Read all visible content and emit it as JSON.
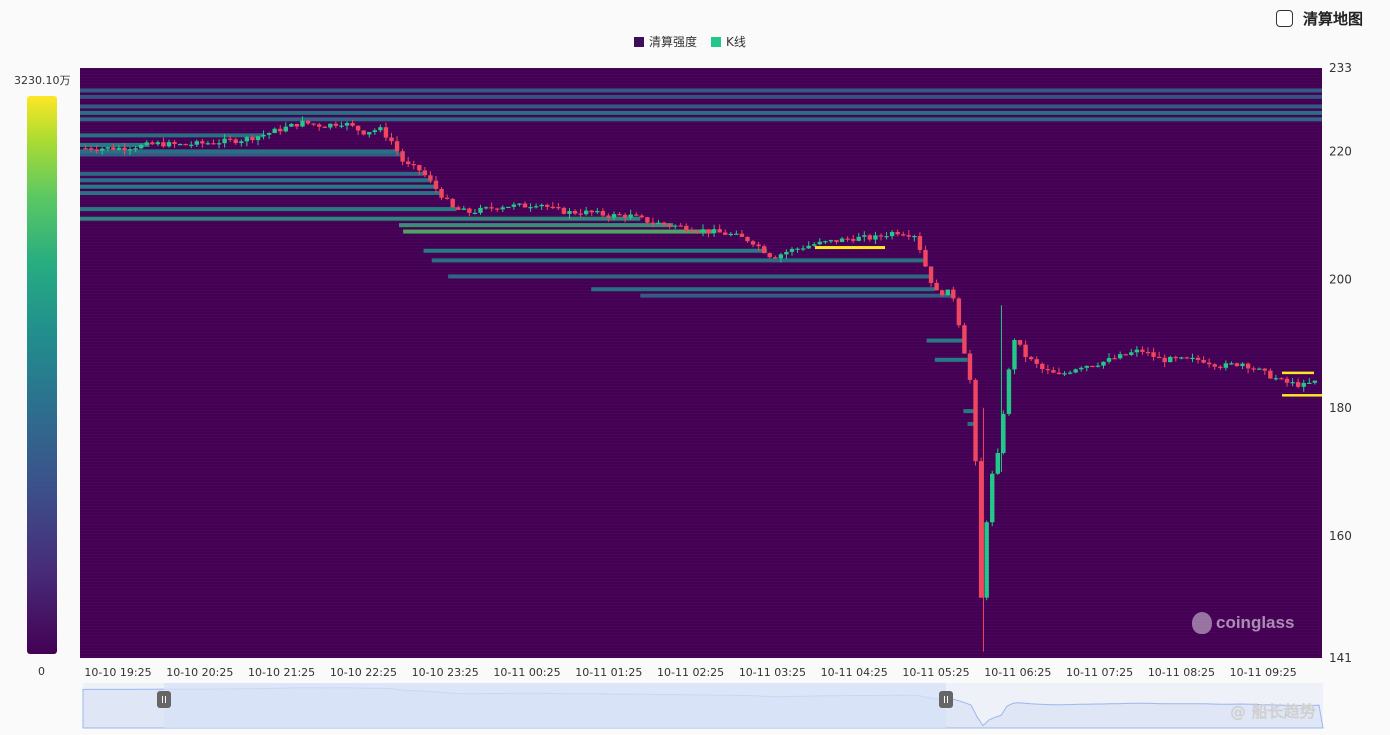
{
  "toggle": {
    "label": "清算地图"
  },
  "legend": [
    {
      "label": "清算强度",
      "color": "#3b0f5c"
    },
    {
      "label": "K线",
      "color": "#22c88a"
    }
  ],
  "colorbar": {
    "max_label": "3230.10万",
    "min_label": "0"
  },
  "watermark": {
    "brand": "coinglass",
    "corner_text": "@ 船长趋势"
  },
  "colors": {
    "background": "#440154",
    "up": "#22c88a",
    "down": "#f0465f",
    "highlight": "#fde725",
    "slider_fill": "#d7e1f8",
    "slider_line": "#9db6ee"
  },
  "chart_data": {
    "type": "heatmap",
    "title": "",
    "xlabel": "",
    "ylabel": "",
    "ylim": [
      141,
      233
    ],
    "y_ticks": [
      "233",
      "220",
      "200",
      "180",
      "160",
      "141"
    ],
    "x_ticks": [
      "10-10 19:25",
      "10-10 20:25",
      "10-10 21:25",
      "10-10 22:25",
      "10-10 23:25",
      "10-11 00:25",
      "10-11 01:25",
      "10-11 02:25",
      "10-11 03:25",
      "10-11 04:25",
      "10-11 05:25",
      "10-11 06:25",
      "10-11 07:25",
      "10-11 08:25",
      "10-11 09:25"
    ],
    "grid": false,
    "legend_position": "top-center",
    "colorbar_range": [
      0,
      32301000
    ],
    "price_path": [
      [
        0,
        220.5
      ],
      [
        0.25,
        220.8
      ],
      [
        0.5,
        221.2
      ],
      [
        0.75,
        221.0
      ],
      [
        1.0,
        221.2
      ],
      [
        1.25,
        221.5
      ],
      [
        1.5,
        221.8
      ],
      [
        1.75,
        222.5
      ],
      [
        2.0,
        223.5
      ],
      [
        2.25,
        224.5
      ],
      [
        2.5,
        224.0
      ],
      [
        2.75,
        224.5
      ],
      [
        3.0,
        223.0
      ],
      [
        3.2,
        223.5
      ],
      [
        3.35,
        221.5
      ],
      [
        3.5,
        218.0
      ],
      [
        3.7,
        217.0
      ],
      [
        3.9,
        214.0
      ],
      [
        4.1,
        211.0
      ],
      [
        4.3,
        210.5
      ],
      [
        4.5,
        211.0
      ],
      [
        4.7,
        211.5
      ],
      [
        5.0,
        211.5
      ],
      [
        5.15,
        212.0
      ],
      [
        5.3,
        211.0
      ],
      [
        5.5,
        210.5
      ],
      [
        5.75,
        210.5
      ],
      [
        6.0,
        210.0
      ],
      [
        6.25,
        210.0
      ],
      [
        6.5,
        209.0
      ],
      [
        6.75,
        208.5
      ],
      [
        7.0,
        208.0
      ],
      [
        7.25,
        207.5
      ],
      [
        7.5,
        207.0
      ],
      [
        7.75,
        206.0
      ],
      [
        7.9,
        204.5
      ],
      [
        8.0,
        203.5
      ],
      [
        8.2,
        204.5
      ],
      [
        8.5,
        205.5
      ],
      [
        8.75,
        206.0
      ],
      [
        9.0,
        206.5
      ],
      [
        9.25,
        206.5
      ],
      [
        9.5,
        207.5
      ],
      [
        9.75,
        207.0
      ],
      [
        9.9,
        201.0
      ],
      [
        10.0,
        198.0
      ],
      [
        10.2,
        198.0
      ],
      [
        10.3,
        192.0
      ],
      [
        10.45,
        182.0
      ],
      [
        10.55,
        150.0
      ],
      [
        10.65,
        168.0
      ],
      [
        10.75,
        172.0
      ],
      [
        10.85,
        182.0
      ],
      [
        10.95,
        191.0
      ],
      [
        11.1,
        188.0
      ],
      [
        11.3,
        186.0
      ],
      [
        11.5,
        185.0
      ],
      [
        11.75,
        186.5
      ],
      [
        12.0,
        187.0
      ],
      [
        12.25,
        188.0
      ],
      [
        12.5,
        189.0
      ],
      [
        12.75,
        187.5
      ],
      [
        13.0,
        187.5
      ],
      [
        13.25,
        187.5
      ],
      [
        13.5,
        186.5
      ],
      [
        13.75,
        187.0
      ],
      [
        14.0,
        185.5
      ],
      [
        14.25,
        184.0
      ],
      [
        14.5,
        183.5
      ],
      [
        14.75,
        184.5
      ],
      [
        14.8,
        184.0
      ]
    ],
    "liquidation_bands": [
      {
        "price": 229.5,
        "intensity": 0.35
      },
      {
        "price": 228.5,
        "intensity": 0.3
      },
      {
        "price": 227.0,
        "intensity": 0.35
      },
      {
        "price": 226.0,
        "intensity": 0.45
      },
      {
        "price": 225.0,
        "intensity": 0.4
      },
      {
        "price": 222.5,
        "intensity": 0.45
      },
      {
        "price": 221.0,
        "intensity": 0.5
      },
      {
        "price": 220.0,
        "intensity": 0.45
      },
      {
        "price": 219.5,
        "intensity": 0.35
      },
      {
        "price": 216.5,
        "intensity": 0.4
      },
      {
        "price": 215.5,
        "intensity": 0.45
      },
      {
        "price": 214.5,
        "intensity": 0.5
      },
      {
        "price": 213.5,
        "intensity": 0.45
      },
      {
        "price": 211.0,
        "intensity": 0.5
      },
      {
        "price": 209.5,
        "intensity": 0.55
      },
      {
        "price": 208.5,
        "intensity": 0.6
      },
      {
        "price": 207.5,
        "intensity": 0.7
      },
      {
        "price": 204.5,
        "intensity": 0.5
      },
      {
        "price": 203.0,
        "intensity": 0.45
      },
      {
        "price": 200.5,
        "intensity": 0.4
      },
      {
        "price": 198.5,
        "intensity": 0.45
      },
      {
        "price": 197.5,
        "intensity": 0.35
      },
      {
        "price": 190.5,
        "intensity": 0.5
      },
      {
        "price": 187.5,
        "intensity": 0.5
      },
      {
        "price": 179.5,
        "intensity": 0.5
      },
      {
        "price": 177.5,
        "intensity": 0.45
      }
    ],
    "highlight_levels": [
      205.0,
      185.5,
      182.0
    ]
  }
}
